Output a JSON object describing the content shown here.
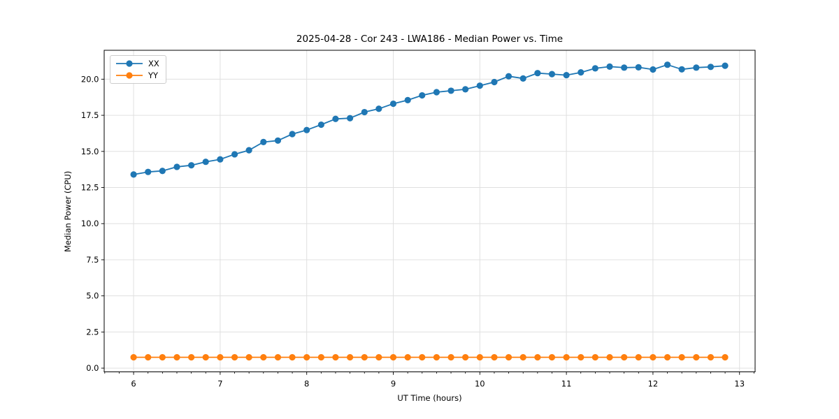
{
  "chart_data": {
    "type": "line",
    "title": "2025-04-28 - Cor 243 - LWA186 - Median Power vs. Time",
    "xlabel": "UT Time (hours)",
    "ylabel": "Median Power (CPU)",
    "xlim": [
      5.66,
      13.18
    ],
    "ylim": [
      -0.26,
      22.0
    ],
    "xticks": [
      6,
      7,
      8,
      9,
      10,
      11,
      12,
      13
    ],
    "yticks": [
      0.0,
      2.5,
      5.0,
      7.5,
      10.0,
      12.5,
      15.0,
      17.5,
      20.0
    ],
    "x_minor_step_per_hour": 6,
    "grid": true,
    "grid_color": "#e0e0e0",
    "legend_position": "upper-left",
    "x": [
      6.0,
      6.167,
      6.333,
      6.5,
      6.667,
      6.833,
      7.0,
      7.167,
      7.333,
      7.5,
      7.667,
      7.833,
      8.0,
      8.167,
      8.333,
      8.5,
      8.667,
      8.833,
      9.0,
      9.167,
      9.333,
      9.5,
      9.667,
      9.833,
      10.0,
      10.167,
      10.333,
      10.5,
      10.667,
      10.833,
      11.0,
      11.167,
      11.333,
      11.5,
      11.667,
      11.833,
      12.0,
      12.167,
      12.333,
      12.5,
      12.667,
      12.833
    ],
    "series": [
      {
        "name": "XX",
        "color": "#1f77b4",
        "values": [
          13.4,
          13.58,
          13.65,
          13.93,
          14.04,
          14.28,
          14.45,
          14.8,
          15.08,
          15.65,
          15.75,
          16.2,
          16.48,
          16.85,
          17.25,
          17.3,
          17.72,
          17.95,
          18.3,
          18.55,
          18.88,
          19.1,
          19.2,
          19.3,
          19.55,
          19.8,
          20.2,
          20.05,
          20.42,
          20.35,
          20.28,
          20.47,
          20.75,
          20.87,
          20.8,
          20.82,
          20.67,
          21.0,
          20.68,
          20.8,
          20.85,
          20.93
        ]
      },
      {
        "name": "YY",
        "color": "#ff7f0e",
        "values": [
          0.75,
          0.75,
          0.75,
          0.75,
          0.75,
          0.75,
          0.75,
          0.75,
          0.75,
          0.75,
          0.75,
          0.75,
          0.75,
          0.75,
          0.75,
          0.75,
          0.75,
          0.75,
          0.75,
          0.75,
          0.75,
          0.75,
          0.75,
          0.75,
          0.75,
          0.75,
          0.75,
          0.75,
          0.75,
          0.75,
          0.75,
          0.75,
          0.75,
          0.75,
          0.75,
          0.75,
          0.75,
          0.75,
          0.75,
          0.75,
          0.75,
          0.75
        ]
      }
    ]
  }
}
